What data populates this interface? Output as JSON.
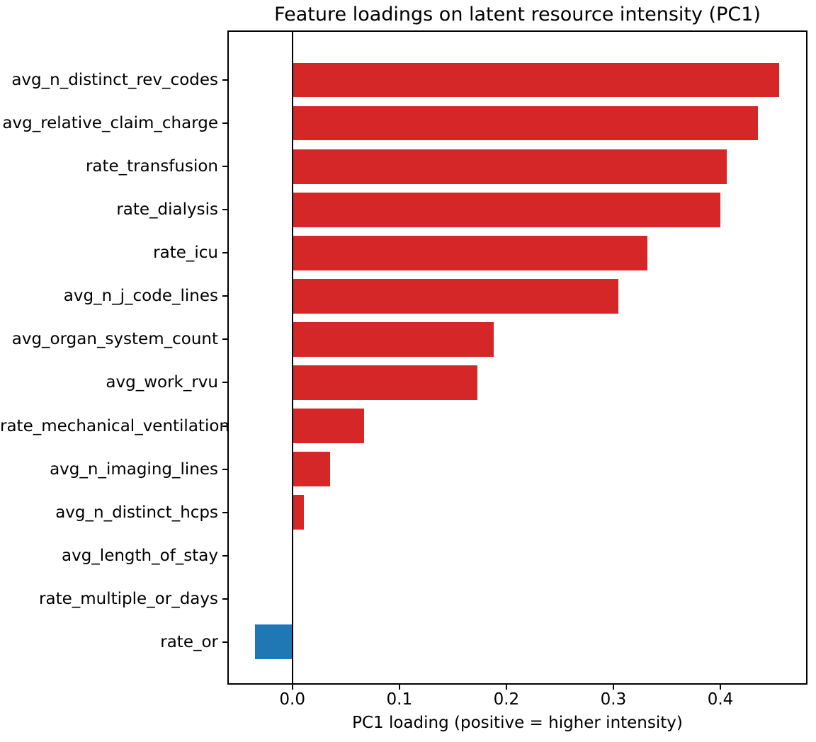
{
  "chart_data": {
    "type": "bar",
    "orientation": "horizontal",
    "title": "Feature loadings on latent resource intensity (PC1)",
    "xlabel": "PC1 loading (positive = higher intensity)",
    "ylabel": "",
    "categories": [
      "avg_n_distinct_rev_codes",
      "avg_relative_claim_charge",
      "rate_transfusion",
      "rate_dialysis",
      "rate_icu",
      "avg_n_j_code_lines",
      "avg_organ_system_count",
      "avg_work_rvu",
      "rate_mechanical_ventilation",
      "avg_n_imaging_lines",
      "avg_n_distinct_hcps",
      "avg_length_of_stay",
      "rate_multiple_or_days",
      "rate_or"
    ],
    "values": [
      0.455,
      0.435,
      0.406,
      0.4,
      0.332,
      0.305,
      0.188,
      0.173,
      0.067,
      0.035,
      0.011,
      0.0,
      0.0,
      -0.035
    ],
    "xlim": [
      -0.0594,
      0.4801
    ],
    "xticks": [
      0.0,
      0.1,
      0.2,
      0.3,
      0.4
    ],
    "xtick_labels": [
      "0.0",
      "0.1",
      "0.2",
      "0.3",
      "0.4"
    ],
    "grid": false,
    "legend": false,
    "colors": {
      "positive_bar": "#d62728",
      "negative_bar": "#1f77b4",
      "axis": "#000000",
      "background": "#ffffff"
    }
  }
}
